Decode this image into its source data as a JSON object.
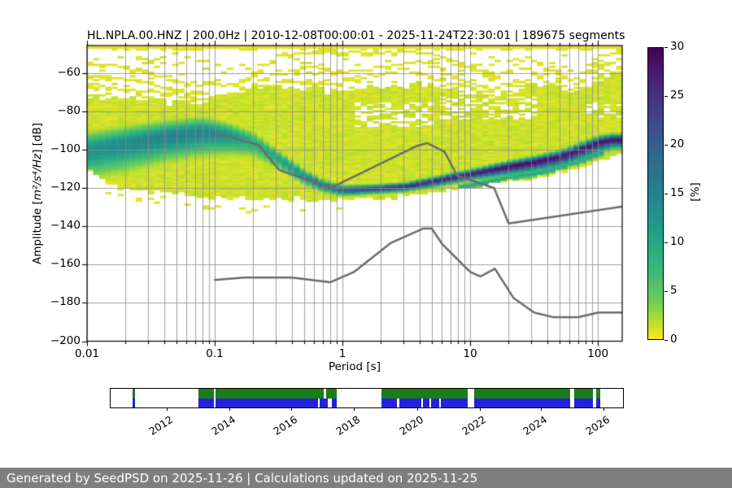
{
  "figure": {
    "title": "HL.NPLA.00.HNZ | 200.0Hz | 2010-12-08T00:00:01 - 2025-11-24T22:30:01 | 189675 segments",
    "xlabel": "Period [s]",
    "ylabel_pre": "Amplitude [",
    "ylabel_math": "m²/s⁴/Hz",
    "ylabel_post": "] [dB]",
    "x_tick_labels": [
      "0.01",
      "0.1",
      "1",
      "10",
      "100"
    ],
    "x_tick_values": [
      -2,
      -1,
      0,
      1,
      2
    ],
    "y_tick_labels": [
      "−60",
      "−80",
      "−100",
      "−120",
      "−140",
      "−160",
      "−180",
      "−200"
    ],
    "y_tick_values": [
      -60,
      -80,
      -100,
      -120,
      -140,
      -160,
      -180,
      -200
    ],
    "colorbar": {
      "label": "[%]",
      "tick_labels": [
        "0",
        "5",
        "10",
        "15",
        "20",
        "25",
        "30"
      ],
      "tick_values": [
        0,
        5,
        10,
        15,
        20,
        25,
        30
      ],
      "vmax": 30,
      "viridis_stops": [
        [
          0.0,
          "#440154"
        ],
        [
          0.125,
          "#482878"
        ],
        [
          0.25,
          "#3e4989"
        ],
        [
          0.375,
          "#31688e"
        ],
        [
          0.5,
          "#26828e"
        ],
        [
          0.625,
          "#1f9e89"
        ],
        [
          0.75,
          "#35b779"
        ],
        [
          0.875,
          "#6ece58"
        ],
        [
          0.9375,
          "#b5de2b"
        ],
        [
          1.0,
          "#fde725"
        ]
      ]
    }
  },
  "chart_data": {
    "type": "heatmap",
    "title": "HL.NPLA.00.HNZ probabilistic power spectral density",
    "xlabel": "Period [s]",
    "ylabel": "Amplitude [m²/s⁴/Hz] [dB]",
    "xscale": "log",
    "xlim_log": [
      -2,
      2.19
    ],
    "ylim": [
      -200,
      -45.5
    ],
    "grid": "on",
    "grid_color": "#8a8a8a",
    "colorbar_max_pct": 30,
    "mode_ridge": {
      "lp": [
        -2,
        -1.7,
        -1.4,
        -1.1,
        -0.9,
        -0.7,
        -0.52,
        -0.3,
        -0.15,
        0,
        0.3,
        0.5,
        0.7,
        0.85,
        1,
        1.3,
        1.48,
        1.7,
        1.85,
        2,
        2.11,
        2.19
      ],
      "db": [
        -100,
        -96.5,
        -93,
        -90.5,
        -92,
        -95.5,
        -103.5,
        -113.5,
        -118.5,
        -121,
        -120,
        -119,
        -116.5,
        -114.5,
        -112.5,
        -108.5,
        -106.5,
        -103.5,
        -100,
        -96,
        -94.5,
        -94.5
      ],
      "peak_pct": [
        13,
        14,
        15,
        15,
        13,
        9,
        10,
        13,
        17,
        20,
        24,
        26,
        26,
        27,
        27,
        29,
        29,
        28,
        28,
        28,
        28,
        28
      ],
      "sigma_above": [
        5,
        4.7,
        4.3,
        4,
        3.4,
        3,
        2.4,
        2,
        1.6,
        1.4,
        1.2,
        1.2,
        1.25,
        1.3,
        1.3,
        1.5,
        1.6,
        1.7,
        1.8,
        1.8,
        1.6,
        1.6
      ],
      "sigma_below": [
        8,
        7.7,
        7,
        6.5,
        5.5,
        4.5,
        3.2,
        2.5,
        1.9,
        1.6,
        1.4,
        1.4,
        1.6,
        1.7,
        1.8,
        2.6,
        2.8,
        3,
        3.2,
        3.2,
        2.6,
        2.6
      ]
    },
    "secondary_ridge": {
      "lp_range": [
        0.9,
        2.05
      ],
      "offset_db": -6,
      "peak_pct": 10,
      "sigma": 1.2
    },
    "envelope_top": {
      "lp": [
        -2,
        -1.6,
        -1.2,
        -0.8,
        -0.5,
        -0.2,
        0,
        0.3,
        0.6,
        0.9,
        1.2,
        1.5,
        1.8,
        2,
        2.19
      ],
      "db": [
        -72,
        -74,
        -77,
        -70,
        -67,
        -69,
        -71,
        -68,
        -66,
        -70,
        -72,
        -66,
        -70,
        -64,
        -60
      ]
    },
    "envelope_bottom": {
      "lp": [
        -2,
        -1.8,
        -1.6,
        -1.3,
        -1,
        -0.5,
        0,
        0.4,
        0.7,
        1,
        1.3,
        1.5,
        1.7,
        1.85,
        2,
        2.19
      ],
      "db": [
        -110,
        -117,
        -121,
        -124,
        -125,
        -125.5,
        -126,
        -125,
        -123.5,
        -120,
        -117.5,
        -114.5,
        -111.5,
        -109,
        -106,
        -102
      ]
    },
    "base_pct": 1.0,
    "top_strip_db": -47,
    "speckle_density": {
      "lp": [
        -2,
        -1.6,
        -1.2,
        -0.8,
        -0.4,
        0,
        0.4,
        0.8,
        1.2,
        1.5,
        1.8,
        2.19
      ],
      "v": [
        0.55,
        0.5,
        0.3,
        0.28,
        0.22,
        0.24,
        0.26,
        0.32,
        0.4,
        0.42,
        0.5,
        0.6
      ]
    },
    "streaks": [
      {
        "lp": [
          -2,
          -1.7,
          -1.2,
          -0.8,
          -0.5,
          -0.2,
          0.3,
          0.55,
          0.8,
          1.0,
          1.2,
          1.45,
          1.6,
          1.8,
          2.0,
          2.19
        ],
        "db": [
          -55,
          -58,
          -66,
          -66,
          -51,
          -49,
          -50,
          -48.5,
          -52,
          -57,
          -63,
          -52,
          -57,
          -64,
          -52,
          -48.5
        ]
      },
      {
        "lp": [
          -2,
          -1.6,
          -1.25,
          -0.9,
          -0.55,
          -0.3,
          0,
          0.3,
          0.6,
          0.8,
          1.05,
          1.3,
          1.5,
          1.75,
          1.95,
          2.1,
          2.19
        ],
        "db": [
          -62,
          -64,
          -70,
          -72,
          -62,
          -57,
          -60,
          -57,
          -54,
          -60,
          -67,
          -70,
          -62,
          -70,
          -60,
          -55,
          -52
        ]
      },
      {
        "lp": [
          -2,
          -1.5,
          -1.1,
          -0.7,
          -0.4,
          -0.1,
          0.2,
          0.5,
          0.7,
          0.9,
          1.1,
          1.35,
          1.55,
          1.8,
          2.0,
          2.19
        ],
        "db": [
          -67,
          -70,
          -74,
          -69,
          -64,
          -66,
          -62,
          -58,
          -63,
          -66,
          -71,
          -64,
          -68,
          -74,
          -68,
          -62
        ]
      }
    ],
    "holes": [
      {
        "lp": [
          0.08,
          0.7
        ],
        "db": [
          -88,
          -76
        ],
        "prob": 0.4
      },
      {
        "lp": [
          0.78,
          1.5
        ],
        "db": [
          -84,
          -73
        ],
        "prob": 0.4
      },
      {
        "lp": [
          1.9,
          2.19
        ],
        "db": [
          -83,
          -76
        ],
        "prob": 0.28
      }
    ],
    "noise_models": {
      "color": "#6b6b6b",
      "nhnm": [
        [
          0.1,
          -91.5
        ],
        [
          0.22,
          -97.4
        ],
        [
          0.32,
          -110.5
        ],
        [
          0.8,
          -120.0
        ],
        [
          3.8,
          -98.0
        ],
        [
          4.6,
          -96.5
        ],
        [
          6.3,
          -101.0
        ],
        [
          7.9,
          -113.5
        ],
        [
          15.4,
          -120.0
        ],
        [
          20.0,
          -138.5
        ],
        [
          155.0,
          -129.6
        ]
      ],
      "nlnm": [
        [
          0.1,
          -168.0
        ],
        [
          0.17,
          -166.7
        ],
        [
          0.4,
          -166.7
        ],
        [
          0.8,
          -169.2
        ],
        [
          1.24,
          -163.7
        ],
        [
          2.4,
          -148.6
        ],
        [
          4.3,
          -141.1
        ],
        [
          5.0,
          -141.1
        ],
        [
          6.0,
          -149.0
        ],
        [
          10.0,
          -163.8
        ],
        [
          12.0,
          -166.2
        ],
        [
          15.6,
          -162.1
        ],
        [
          21.9,
          -177.5
        ],
        [
          31.6,
          -185.0
        ],
        [
          45.0,
          -187.5
        ],
        [
          70.0,
          -187.5
        ],
        [
          101.0,
          -185.0
        ],
        [
          155.0,
          -185.0
        ]
      ]
    }
  },
  "timeline": {
    "green_color": "#1a7d1a",
    "blue_color": "#2222dd",
    "year_labels": [
      "2012",
      "2014",
      "2016",
      "2018",
      "2020",
      "2022",
      "2024",
      "2026"
    ],
    "year_fracs": [
      0.111,
      0.233,
      0.354,
      0.476,
      0.6,
      0.722,
      0.841,
      0.963
    ],
    "green_segments": [
      [
        0.043,
        0.047
      ],
      [
        0.171,
        0.201
      ],
      [
        0.205,
        0.416
      ],
      [
        0.42,
        0.441
      ],
      [
        0.529,
        0.697
      ],
      [
        0.71,
        0.897
      ],
      [
        0.905,
        0.941
      ],
      [
        0.948,
        0.956
      ]
    ],
    "blue_segments": [
      [
        0.043,
        0.047
      ],
      [
        0.171,
        0.201
      ],
      [
        0.205,
        0.404
      ],
      [
        0.408,
        0.424
      ],
      [
        0.432,
        0.441
      ],
      [
        0.529,
        0.559
      ],
      [
        0.563,
        0.606
      ],
      [
        0.61,
        0.622
      ],
      [
        0.626,
        0.641
      ],
      [
        0.645,
        0.697
      ],
      [
        0.71,
        0.897
      ],
      [
        0.905,
        0.941
      ],
      [
        0.948,
        0.956
      ]
    ]
  },
  "footer": {
    "text": "Generated by SeedPSD on 2025-11-26 | Calculations updated on 2025-11-25",
    "bg_color": "#7f7f7f"
  }
}
